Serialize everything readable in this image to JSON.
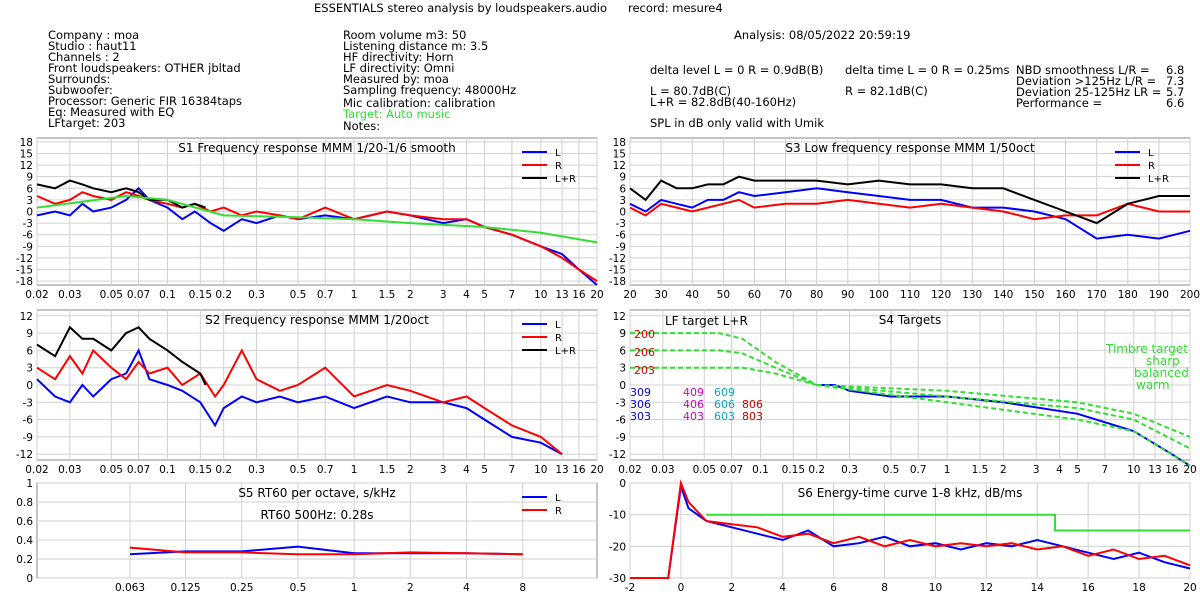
{
  "header": {
    "title": "ESSENTIALS stereo analysis by loudspeakers.audio",
    "record": "record: mesure4",
    "info_left": [
      "Company : moa",
      "Studio : haut11",
      "Channels : 2",
      "Front loudspeakers: OTHER jbltad",
      "Surrounds:",
      "Subwoofer:",
      "Processor: Generic FIR 16384taps",
      "Eq: Measured with EQ",
      "LFtarget: 203"
    ],
    "info_mid": [
      "Room volume m3: 50",
      "Listening distance m: 3.5",
      "HF directivity: Horn",
      "LF directivity: Omni",
      "Measured by: moa",
      "Sampling frequency: 48000Hz",
      "Mic calibration: calibration"
    ],
    "target_line": "Target: Auto music",
    "notes": "Notes:",
    "analysis": "Analysis: 08/05/2022 20:59:19",
    "delta_level": "delta level L = 0  R = 0.9dB(B)",
    "delta_time": "delta time  L = 0  R = 0.25ms",
    "l_level": "L =      80.7dB(C)",
    "lr_level": "L+R = 82.8dB(40-160Hz)",
    "r_level": "R =      82.1dB(C)",
    "spl_note": "SPL in dB only valid with Umik",
    "metrics": [
      {
        "label": "NBD smoothness L/R =",
        "value": "6.8"
      },
      {
        "label": "Deviation >125Hz L/R =",
        "value": "7.3"
      },
      {
        "label": "Deviation 25-125Hz LR =",
        "value": "5.7"
      },
      {
        "label": "Performance =",
        "value": "6.6"
      }
    ]
  },
  "colors": {
    "L": "#0000ff",
    "R": "#ff0000",
    "LR": "#000000",
    "target": "#33dd33",
    "grid": "#d0d0d0"
  },
  "chart_data": [
    {
      "id": "s1",
      "type": "line",
      "title": "S1  Frequency response MMM 1/20-1/6 smooth",
      "x_scale": "log",
      "xlim": [
        0.02,
        20
      ],
      "ylim": [
        -19,
        19
      ],
      "x_ticks": [
        0.02,
        0.03,
        0.05,
        0.07,
        0.1,
        0.15,
        0.2,
        0.3,
        0.5,
        0.7,
        1,
        1.5,
        2,
        3,
        4,
        5,
        7,
        10,
        13,
        16,
        20
      ],
      "y_ticks": [
        18,
        15,
        12,
        9,
        6,
        3,
        0,
        -3,
        -6,
        -9,
        -12,
        -15,
        -18
      ],
      "legend": [
        "L",
        "R",
        "L+R"
      ],
      "legend_position": "top-right",
      "series": [
        {
          "name": "L",
          "x": [
            0.02,
            0.025,
            0.03,
            0.035,
            0.04,
            0.05,
            0.06,
            0.07,
            0.08,
            0.1,
            0.12,
            0.14,
            0.17,
            0.2,
            0.25,
            0.3,
            0.4,
            0.5,
            0.7,
            1,
            1.5,
            2,
            3,
            4,
            5,
            7,
            10,
            13,
            16,
            20
          ],
          "values": [
            -1,
            0,
            -1,
            2,
            0,
            1,
            3,
            6,
            3,
            1,
            -2,
            0,
            -3,
            -5,
            -2,
            -3,
            -1,
            -2,
            -1,
            -2,
            0,
            -1,
            -3,
            -2,
            -4,
            -6,
            -9,
            -11,
            -15,
            -19
          ]
        },
        {
          "name": "R",
          "x": [
            0.02,
            0.025,
            0.03,
            0.035,
            0.04,
            0.05,
            0.06,
            0.07,
            0.08,
            0.1,
            0.12,
            0.14,
            0.17,
            0.2,
            0.25,
            0.3,
            0.4,
            0.5,
            0.7,
            1,
            1.5,
            2,
            3,
            4,
            5,
            7,
            10,
            13,
            16,
            20
          ],
          "values": [
            4,
            2,
            3,
            5,
            4,
            3,
            5,
            4,
            3,
            2,
            1,
            2,
            0,
            1,
            -1,
            0,
            -1,
            -2,
            1,
            -2,
            0,
            -1,
            -2,
            -2,
            -4,
            -6,
            -9,
            -12,
            -15,
            -18
          ]
        },
        {
          "name": "L+R",
          "x": [
            0.02,
            0.025,
            0.03,
            0.035,
            0.04,
            0.05,
            0.06,
            0.07,
            0.08,
            0.1,
            0.12,
            0.14,
            0.16
          ],
          "values": [
            7,
            6,
            8,
            7,
            6,
            5,
            6,
            5,
            3,
            3,
            1,
            2,
            1
          ]
        },
        {
          "name": "target",
          "x": [
            0.02,
            0.06,
            0.1,
            0.2,
            0.5,
            1,
            2,
            5,
            10,
            20
          ],
          "values": [
            1,
            4,
            3,
            -1,
            -1.5,
            -2,
            -3,
            -4,
            -5.5,
            -8
          ]
        }
      ]
    },
    {
      "id": "s3",
      "type": "line",
      "title": "S3  Low frequency response MMM 1/50oct",
      "x_scale": "linear",
      "xlim": [
        20,
        200
      ],
      "ylim": [
        -19,
        19
      ],
      "x_ticks": [
        20,
        30,
        40,
        50,
        60,
        70,
        80,
        90,
        100,
        110,
        120,
        130,
        140,
        150,
        160,
        170,
        180,
        190,
        200
      ],
      "y_ticks": [
        18,
        15,
        12,
        9,
        6,
        3,
        0,
        -3,
        -6,
        -9,
        -12,
        -15,
        -18
      ],
      "legend": [
        "L",
        "R",
        "L+R"
      ],
      "legend_position": "top-right",
      "series": [
        {
          "name": "L",
          "x": [
            20,
            25,
            30,
            35,
            40,
            45,
            50,
            55,
            60,
            70,
            80,
            90,
            100,
            110,
            120,
            130,
            140,
            150,
            160,
            170,
            180,
            190,
            200
          ],
          "values": [
            2,
            0,
            3,
            2,
            1,
            3,
            3,
            5,
            4,
            5,
            6,
            5,
            4,
            3,
            3,
            1,
            1,
            0,
            -2,
            -7,
            -6,
            -7,
            -5
          ]
        },
        {
          "name": "R",
          "x": [
            20,
            25,
            30,
            35,
            40,
            45,
            50,
            55,
            60,
            70,
            80,
            90,
            100,
            110,
            120,
            130,
            140,
            150,
            160,
            170,
            180,
            190,
            200
          ],
          "values": [
            1,
            -1,
            2,
            1,
            0,
            1,
            2,
            3,
            1,
            2,
            2,
            3,
            2,
            1,
            2,
            1,
            0,
            -2,
            -1,
            -1,
            2,
            0,
            0
          ]
        },
        {
          "name": "L+R",
          "x": [
            20,
            25,
            30,
            35,
            40,
            45,
            50,
            55,
            60,
            70,
            80,
            90,
            100,
            110,
            120,
            130,
            140,
            150,
            160,
            170,
            180,
            190,
            200
          ],
          "values": [
            6,
            3,
            8,
            6,
            6,
            7,
            7,
            9,
            8,
            8,
            8,
            7,
            8,
            7,
            7,
            6,
            6,
            3,
            0,
            -3,
            2,
            4,
            4
          ]
        }
      ]
    },
    {
      "id": "s2",
      "type": "line",
      "title": "S2  Frequency response MMM 1/20oct",
      "x_scale": "log",
      "xlim": [
        0.02,
        20
      ],
      "ylim": [
        -13,
        13
      ],
      "x_ticks": [
        0.02,
        0.03,
        0.05,
        0.07,
        0.1,
        0.15,
        0.2,
        0.3,
        0.5,
        0.7,
        1,
        1.5,
        2,
        3,
        4,
        5,
        7,
        10,
        13,
        16,
        20
      ],
      "y_ticks": [
        12,
        9,
        6,
        3,
        0,
        -3,
        -6,
        -9,
        -12
      ],
      "legend": [
        "L",
        "R",
        "L+R"
      ],
      "legend_position": "top-right",
      "series": [
        {
          "name": "L",
          "x": [
            0.02,
            0.025,
            0.03,
            0.035,
            0.04,
            0.05,
            0.06,
            0.07,
            0.08,
            0.1,
            0.12,
            0.15,
            0.18,
            0.2,
            0.25,
            0.3,
            0.4,
            0.5,
            0.7,
            1,
            1.5,
            2,
            3,
            4,
            5,
            7,
            10,
            13
          ],
          "values": [
            1,
            -2,
            -3,
            0,
            -2,
            1,
            2,
            6,
            1,
            0,
            -1,
            -3,
            -7,
            -4,
            -2,
            -3,
            -2,
            -3,
            -2,
            -4,
            -2,
            -3,
            -3,
            -4,
            -6,
            -9,
            -10,
            -12
          ]
        },
        {
          "name": "R",
          "x": [
            0.02,
            0.025,
            0.03,
            0.035,
            0.04,
            0.05,
            0.06,
            0.07,
            0.08,
            0.1,
            0.12,
            0.15,
            0.18,
            0.2,
            0.25,
            0.3,
            0.4,
            0.5,
            0.7,
            1,
            1.5,
            2,
            3,
            4,
            5,
            7,
            10,
            13
          ],
          "values": [
            3,
            1,
            5,
            2,
            6,
            3,
            1,
            4,
            2,
            3,
            0,
            2,
            -2,
            0,
            6,
            1,
            -1,
            0,
            3,
            -2,
            0,
            -1,
            -3,
            -2,
            -4,
            -7,
            -9,
            -12
          ]
        },
        {
          "name": "L+R",
          "x": [
            0.02,
            0.025,
            0.03,
            0.035,
            0.04,
            0.05,
            0.06,
            0.07,
            0.08,
            0.1,
            0.12,
            0.15,
            0.16
          ],
          "values": [
            7,
            5,
            10,
            8,
            8,
            6,
            9,
            10,
            8,
            6,
            4,
            2,
            0
          ]
        }
      ]
    },
    {
      "id": "s4",
      "type": "line",
      "title": "S4 Targets",
      "x_scale": "log",
      "xlim": [
        0.02,
        20
      ],
      "ylim": [
        -13,
        13
      ],
      "x_ticks": [
        0.02,
        0.03,
        0.05,
        0.07,
        0.1,
        0.15,
        0.2,
        0.3,
        0.5,
        0.7,
        1,
        1.5,
        2,
        3,
        4,
        5,
        7,
        10,
        13,
        16,
        20
      ],
      "y_ticks": [
        12,
        9,
        6,
        3,
        0,
        -3,
        -6,
        -9,
        -12
      ],
      "annotations": [
        "LF target L+R",
        "200",
        "206",
        "203",
        "309",
        "306",
        "303",
        "409",
        "406",
        "403",
        "609",
        "606",
        "603",
        "806",
        "803",
        "Timbre target",
        "sharp",
        "balanced",
        "warm"
      ],
      "series": [
        {
          "name": "LF 200",
          "x": [
            0.02,
            0.03,
            0.04,
            0.06,
            0.08,
            0.12,
            0.2
          ],
          "values": [
            9,
            9,
            9,
            9,
            8,
            4,
            0
          ]
        },
        {
          "name": "LF 206",
          "x": [
            0.02,
            0.03,
            0.04,
            0.06,
            0.08,
            0.12,
            0.2
          ],
          "values": [
            6,
            6,
            6,
            6,
            5.5,
            3,
            0
          ]
        },
        {
          "name": "LF 203",
          "x": [
            0.02,
            0.03,
            0.04,
            0.06,
            0.08,
            0.12,
            0.2
          ],
          "values": [
            3,
            3,
            3,
            3,
            3,
            2,
            0
          ]
        },
        {
          "name": "L",
          "x": [
            0.2,
            0.25,
            0.3,
            0.5,
            1,
            2,
            5,
            10,
            16,
            20
          ],
          "values": [
            0,
            0,
            -1,
            -2,
            -2,
            -3,
            -5,
            -8,
            -12,
            -14
          ]
        },
        {
          "name": "sharp",
          "x": [
            0.2,
            1,
            5,
            10,
            20
          ],
          "values": [
            0,
            -1,
            -3,
            -5,
            -9
          ]
        },
        {
          "name": "balanced",
          "x": [
            0.2,
            1,
            5,
            10,
            20
          ],
          "values": [
            0,
            -2,
            -4,
            -6,
            -11
          ]
        },
        {
          "name": "warm",
          "x": [
            0.2,
            1,
            5,
            10,
            20
          ],
          "values": [
            0,
            -3,
            -6,
            -8,
            -14
          ]
        }
      ]
    },
    {
      "id": "s5",
      "type": "line",
      "title": "S5  RT60 per octave, s/kHz",
      "annotation": "RT60 500Hz: 0.28s",
      "x_scale": "log",
      "xlim": [
        0.02,
        20
      ],
      "ylim": [
        0,
        1
      ],
      "x_ticks": [
        0.063,
        0.125,
        0.25,
        0.5,
        1,
        2,
        4,
        8
      ],
      "y_ticks": [
        1,
        0.8,
        0.6,
        0.4,
        0.2,
        0
      ],
      "legend": [
        "L",
        "R"
      ],
      "legend_position": "top-right",
      "series": [
        {
          "name": "L",
          "x": [
            0.063,
            0.125,
            0.25,
            0.5,
            1,
            2,
            4,
            8
          ],
          "values": [
            0.25,
            0.28,
            0.28,
            0.33,
            0.26,
            0.26,
            0.26,
            0.25
          ]
        },
        {
          "name": "R",
          "x": [
            0.063,
            0.125,
            0.25,
            0.5,
            1,
            2,
            4,
            8
          ],
          "values": [
            0.32,
            0.27,
            0.27,
            0.25,
            0.25,
            0.27,
            0.26,
            0.25
          ]
        }
      ]
    },
    {
      "id": "s6",
      "type": "line",
      "title": "S6  Energy-time curve 1-8 kHz, dB/ms",
      "x_scale": "linear",
      "xlim": [
        -2,
        20
      ],
      "ylim": [
        -30,
        0
      ],
      "x_ticks": [
        -2,
        0,
        2,
        4,
        6,
        8,
        10,
        12,
        14,
        16,
        18,
        20
      ],
      "y_ticks": [
        0,
        -10,
        -20,
        -30
      ],
      "series": [
        {
          "name": "target",
          "x": [
            1,
            14.7,
            14.7,
            20
          ],
          "values": [
            -10,
            -10,
            -15,
            -15
          ]
        },
        {
          "name": "L",
          "x": [
            -2,
            -0.5,
            0,
            0.3,
            1,
            2,
            3,
            4,
            5,
            6,
            7,
            8,
            9,
            10,
            11,
            12,
            13,
            14,
            15,
            16,
            17,
            18,
            19,
            20
          ],
          "values": [
            -30,
            -30,
            -1,
            -8,
            -12,
            -14,
            -16,
            -18,
            -15,
            -20,
            -19,
            -17,
            -20,
            -19,
            -21,
            -19,
            -20,
            -18,
            -20,
            -22,
            -24,
            -22,
            -25,
            -27
          ]
        },
        {
          "name": "R",
          "x": [
            -2,
            -0.5,
            0,
            0.3,
            1,
            2,
            3,
            4,
            5,
            6,
            7,
            8,
            9,
            10,
            11,
            12,
            13,
            14,
            15,
            16,
            17,
            18,
            19,
            20
          ],
          "values": [
            -30,
            -30,
            0,
            -6,
            -12,
            -13,
            -14,
            -17,
            -16,
            -19,
            -17,
            -20,
            -18,
            -20,
            -19,
            -20,
            -19,
            -21,
            -20,
            -23,
            -21,
            -24,
            -23,
            -26
          ]
        }
      ]
    }
  ]
}
